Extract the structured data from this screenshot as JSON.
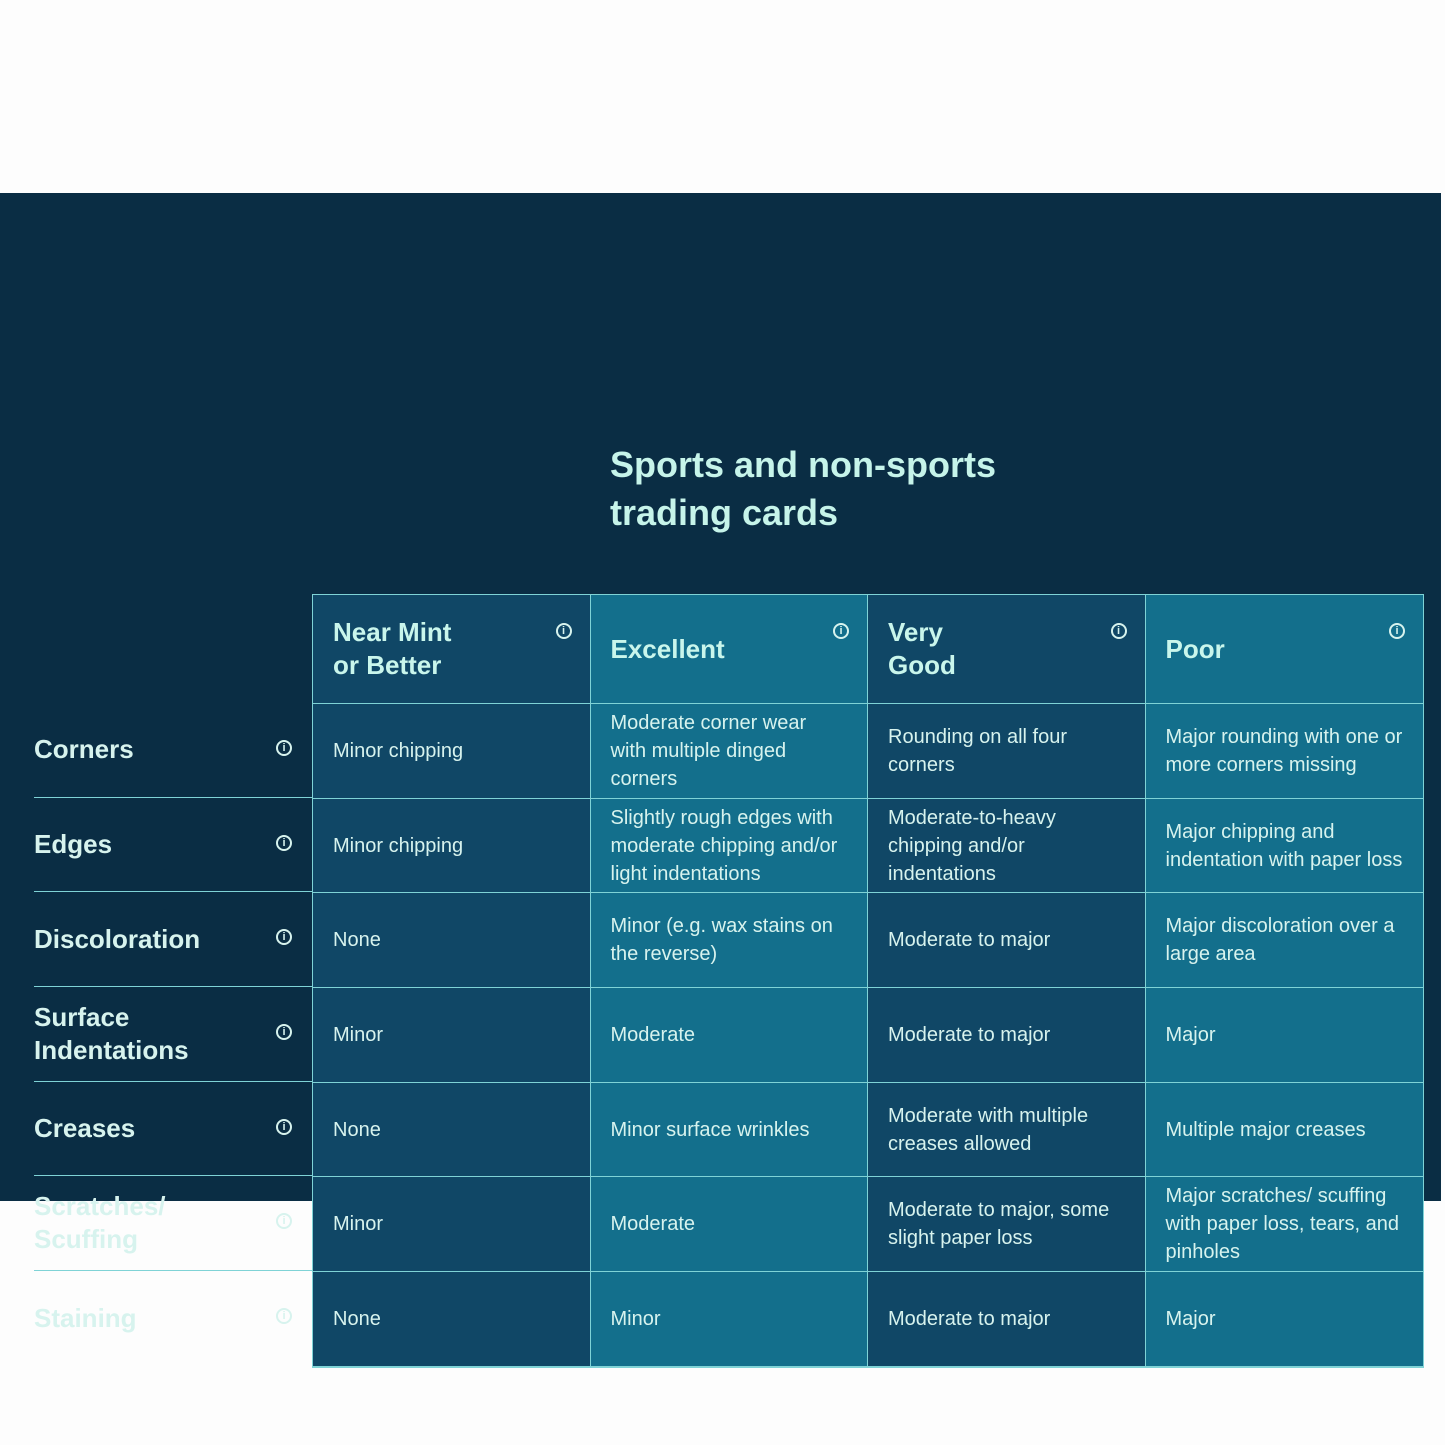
{
  "title": "Sports and non-sports\ntrading cards",
  "columns": [
    "Near Mint\nor Better",
    "Excellent",
    "Very\nGood",
    "Poor"
  ],
  "rows": [
    {
      "label": "Corners",
      "cells": [
        "Minor chipping",
        "Moderate corner wear with multiple dinged corners",
        "Rounding on all four corners",
        "Major rounding with one or more corners missing"
      ]
    },
    {
      "label": "Edges",
      "cells": [
        "Minor chipping",
        "Slightly rough edges with moderate chipping and/or light indentations",
        "Moderate-to-heavy chipping and/or indentations",
        "Major chipping and indentation with paper loss"
      ]
    },
    {
      "label": "Discoloration",
      "cells": [
        "None",
        "Minor (e.g. wax stains on the reverse)",
        "Moderate to major",
        "Major discoloration over a large area"
      ]
    },
    {
      "label": "Surface\nIndentations",
      "cells": [
        "Minor",
        "Moderate",
        "Moderate to major",
        "Major"
      ]
    },
    {
      "label": "Creases",
      "cells": [
        "None",
        "Minor surface wrinkles",
        "Moderate with multiple creases allowed",
        "Multiple major creases"
      ]
    },
    {
      "label": "Scratches/\nScuffing",
      "cells": [
        "Minor",
        "Moderate",
        "Moderate to major, some slight paper loss",
        "Major scratches/ scuffing with paper loss, tears, and pinholes"
      ]
    },
    {
      "label": "Staining",
      "cells": [
        "None",
        "Minor",
        "Moderate to major",
        "Major"
      ]
    }
  ],
  "icons": {
    "info": "info-circle-icon",
    "info_glyph": "i"
  },
  "colors": {
    "panel": "#0a2d44",
    "column_dark": "#104766",
    "column_light": "#136f8c",
    "text": "#d7f3ee",
    "border": "#7fd3d6"
  }
}
